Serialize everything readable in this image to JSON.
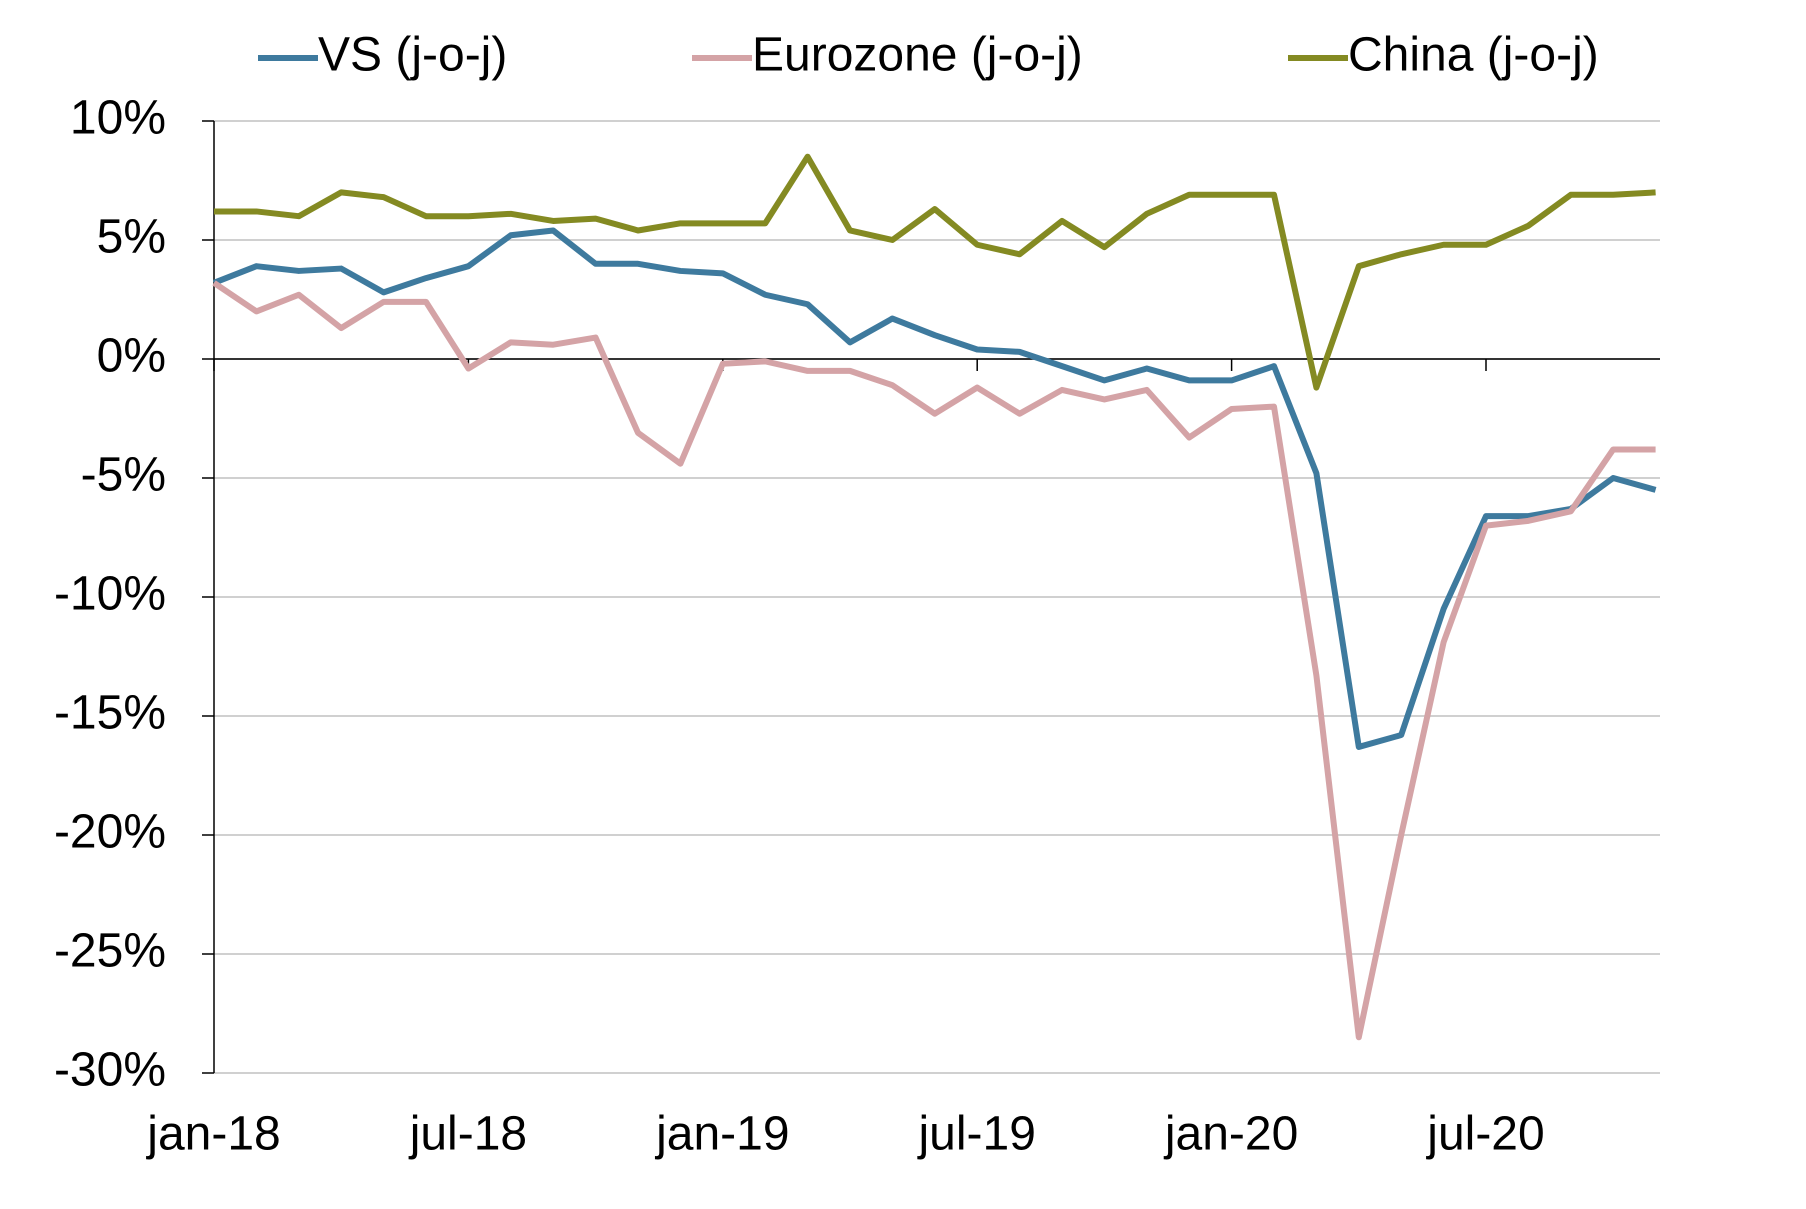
{
  "chart_data": {
    "type": "line",
    "categories": [
      "jan-18",
      null,
      null,
      null,
      null,
      null,
      "jul-18",
      null,
      null,
      null,
      null,
      null,
      "jan-19",
      null,
      null,
      null,
      null,
      null,
      "jul-19",
      null,
      null,
      null,
      null,
      null,
      "jan-20",
      null,
      null,
      null,
      null,
      null,
      "jul-20",
      null,
      null,
      null,
      null
    ],
    "series": [
      {
        "name": "VS (j-o-j)",
        "color": "#3e7a9e",
        "values": [
          3.2,
          3.9,
          3.7,
          3.8,
          2.8,
          3.4,
          3.9,
          5.2,
          5.4,
          4.0,
          4.0,
          3.7,
          3.6,
          2.7,
          2.3,
          0.7,
          1.7,
          1.0,
          0.4,
          0.3,
          -0.3,
          -0.9,
          -0.4,
          -0.9,
          -0.9,
          -0.3,
          -4.8,
          -16.3,
          -15.8,
          -10.5,
          -6.6,
          -6.6,
          -6.3,
          -5.0,
          -5.5
        ]
      },
      {
        "name": "Eurozone (j-o-j)",
        "color": "#d4a3a6",
        "values": [
          3.2,
          2.0,
          2.7,
          1.3,
          2.4,
          2.4,
          -0.4,
          0.7,
          0.6,
          0.9,
          -3.1,
          -4.4,
          -0.2,
          -0.1,
          -0.5,
          -0.5,
          -1.1,
          -2.3,
          -1.2,
          -2.3,
          -1.3,
          -1.7,
          -1.3,
          -3.3,
          -2.1,
          -2.0,
          -13.3,
          -28.5,
          -20.0,
          -11.9,
          -7.0,
          -6.8,
          -6.4,
          -3.8,
          -3.8
        ]
      },
      {
        "name": "China (j-o-j)",
        "color": "#848a22",
        "values": [
          6.2,
          6.2,
          6.0,
          7.0,
          6.8,
          6.0,
          6.0,
          6.1,
          5.8,
          5.9,
          5.4,
          5.7,
          5.7,
          5.7,
          8.5,
          5.4,
          5.0,
          6.3,
          4.8,
          4.4,
          5.8,
          4.7,
          6.1,
          6.9,
          6.9,
          6.9,
          -1.2,
          3.9,
          4.4,
          4.8,
          4.8,
          5.6,
          6.9,
          6.9,
          7.0
        ]
      }
    ],
    "ylim": [
      -30,
      10
    ],
    "yticks": [
      {
        "value": -30,
        "label": "-30%"
      },
      {
        "value": -25,
        "label": "-25%"
      },
      {
        "value": -20,
        "label": "-20%"
      },
      {
        "value": -15,
        "label": "-15%"
      },
      {
        "value": -10,
        "label": "-10%"
      },
      {
        "value": -5,
        "label": "-5%"
      },
      {
        "value": 0,
        "label": "0%"
      },
      {
        "value": 5,
        "label": "5%"
      },
      {
        "value": 10,
        "label": "10%"
      }
    ],
    "grid": true,
    "legend": "top"
  }
}
